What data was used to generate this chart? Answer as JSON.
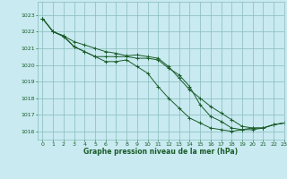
{
  "title": "Graphe pression niveau de la mer (hPa)",
  "bg_color": "#c8eaf0",
  "grid_color": "#88bbbb",
  "line_color": "#1a5c2a",
  "marker_color": "#1a5c2a",
  "xlim": [
    -0.5,
    23
  ],
  "ylim": [
    1015.5,
    1023.8
  ],
  "yticks": [
    1016,
    1017,
    1018,
    1019,
    1020,
    1021,
    1022,
    1023
  ],
  "xticks": [
    0,
    1,
    2,
    3,
    4,
    5,
    6,
    7,
    8,
    9,
    10,
    11,
    12,
    13,
    14,
    15,
    16,
    17,
    18,
    19,
    20,
    21,
    22,
    23
  ],
  "series1": [
    1022.8,
    1022.0,
    1021.75,
    1021.4,
    1021.2,
    1021.0,
    1020.8,
    1020.7,
    1020.55,
    1020.6,
    1020.5,
    1020.4,
    1019.9,
    1019.2,
    1018.5,
    1018.0,
    1017.5,
    1017.1,
    1016.7,
    1016.3,
    1016.2,
    1016.2,
    1016.4,
    1016.5
  ],
  "series2": [
    1022.8,
    1022.0,
    1021.75,
    1021.1,
    1020.8,
    1020.5,
    1020.2,
    1020.2,
    1020.3,
    1019.9,
    1019.5,
    1018.7,
    1018.0,
    1017.4,
    1016.8,
    1016.5,
    1016.2,
    1016.1,
    1016.0,
    1016.1,
    1016.2,
    1016.2,
    1016.4,
    1016.5
  ],
  "series3": [
    1022.8,
    1022.0,
    1021.7,
    1021.1,
    1020.8,
    1020.5,
    1020.5,
    1020.5,
    1020.5,
    1020.4,
    1020.4,
    1020.3,
    1019.8,
    1019.4,
    1018.7,
    1017.6,
    1016.9,
    1016.6,
    1016.2,
    1016.1,
    1016.1,
    1016.2,
    1016.4,
    1016.5
  ]
}
